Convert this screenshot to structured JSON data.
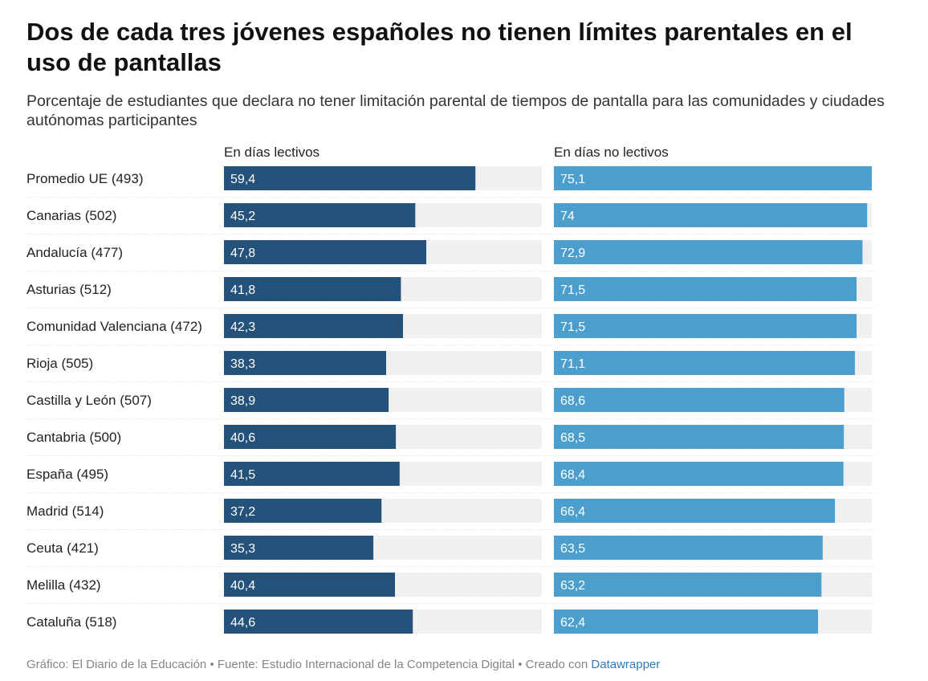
{
  "title": "Dos de cada tres jóvenes españoles no tienen límites parentales en el uso de pantallas",
  "subtitle": "Porcentaje de estudiantes que declara no tener limitación parental de tiempos de pantalla para las comunidades y ciudades autónomas participantes",
  "footer": {
    "text": "Gráfico: El Diario de la Educación • Fuente: Estudio Internacional de la Competencia Digital • Creado con ",
    "link": "Datawrapper"
  },
  "chart_data": {
    "type": "bar",
    "orientation": "horizontal",
    "grid": false,
    "xlim": [
      0,
      75.1
    ],
    "categories": [
      "Promedio UE (493)",
      "Canarias (502)",
      "Andalucía (477)",
      "Asturias (512)",
      "Comunidad Valenciana (472)",
      "Rioja (505)",
      "Castilla y León (507)",
      "Cantabria (500)",
      "España (495)",
      "Madrid (514)",
      "Ceuta (421)",
      "Melilla (432)",
      "Cataluña (518)"
    ],
    "series": [
      {
        "name": "En días lectivos",
        "color": "#24527a",
        "values": [
          59.4,
          45.2,
          47.8,
          41.8,
          42.3,
          38.3,
          38.9,
          40.6,
          41.5,
          37.2,
          35.3,
          40.4,
          44.6
        ],
        "labels": [
          "59,4",
          "45,2",
          "47,8",
          "41,8",
          "42,3",
          "38,3",
          "38,9",
          "40,6",
          "41,5",
          "37,2",
          "35,3",
          "40,4",
          "44,6"
        ]
      },
      {
        "name": "En días no lectivos",
        "color": "#4c9fcd",
        "values": [
          75.1,
          74,
          72.9,
          71.5,
          71.5,
          71.1,
          68.6,
          68.5,
          68.4,
          66.4,
          63.5,
          63.2,
          62.4
        ],
        "labels": [
          "75,1",
          "74",
          "72,9",
          "71,5",
          "71,5",
          "71,1",
          "68,6",
          "68,5",
          "68,4",
          "66,4",
          "63,5",
          "63,2",
          "62,4"
        ]
      }
    ],
    "background_color": "#f0f0f0"
  }
}
